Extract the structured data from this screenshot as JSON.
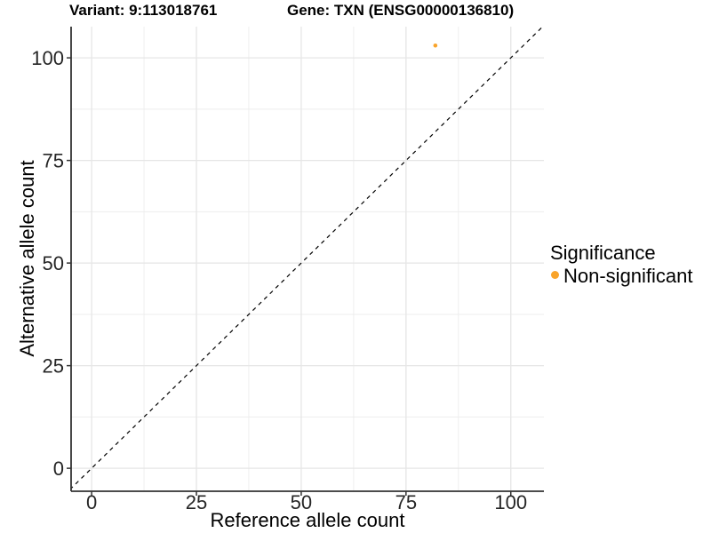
{
  "header": {
    "variant_title": "Variant: 9:113018761",
    "gene_title": "Gene: TXN (ENSG00000136810)"
  },
  "chart_data": {
    "type": "scatter",
    "title": "Variant: 9:113018761  /  Gene: TXN (ENSG00000136810)",
    "xlabel": "Reference allele count",
    "ylabel": "Alternative allele count",
    "x_ticks": [
      0,
      25,
      50,
      75,
      100
    ],
    "y_ticks": [
      0,
      25,
      50,
      75,
      100
    ],
    "xlim": [
      -4.9,
      107.9
    ],
    "ylim": [
      -5.6,
      107.6
    ],
    "grid": "major+minor",
    "identity_line": {
      "style": "dashed",
      "color": "#000000",
      "from": [
        -12,
        -12
      ],
      "to": [
        120,
        120
      ]
    },
    "points": [
      {
        "x": 82,
        "y": 103,
        "series": "Non-significant"
      }
    ],
    "legend": {
      "title": "Significance",
      "position": "right",
      "items": [
        {
          "label": "Non-significant",
          "color": "#F9A42B"
        }
      ]
    },
    "colors": {
      "point": "#F9A42B",
      "grid_major": "#E6E6E6",
      "grid_minor": "#EDEDED",
      "axis_line": "#333333",
      "tick_mark": "#333333",
      "background": "#FFFFFF"
    }
  }
}
